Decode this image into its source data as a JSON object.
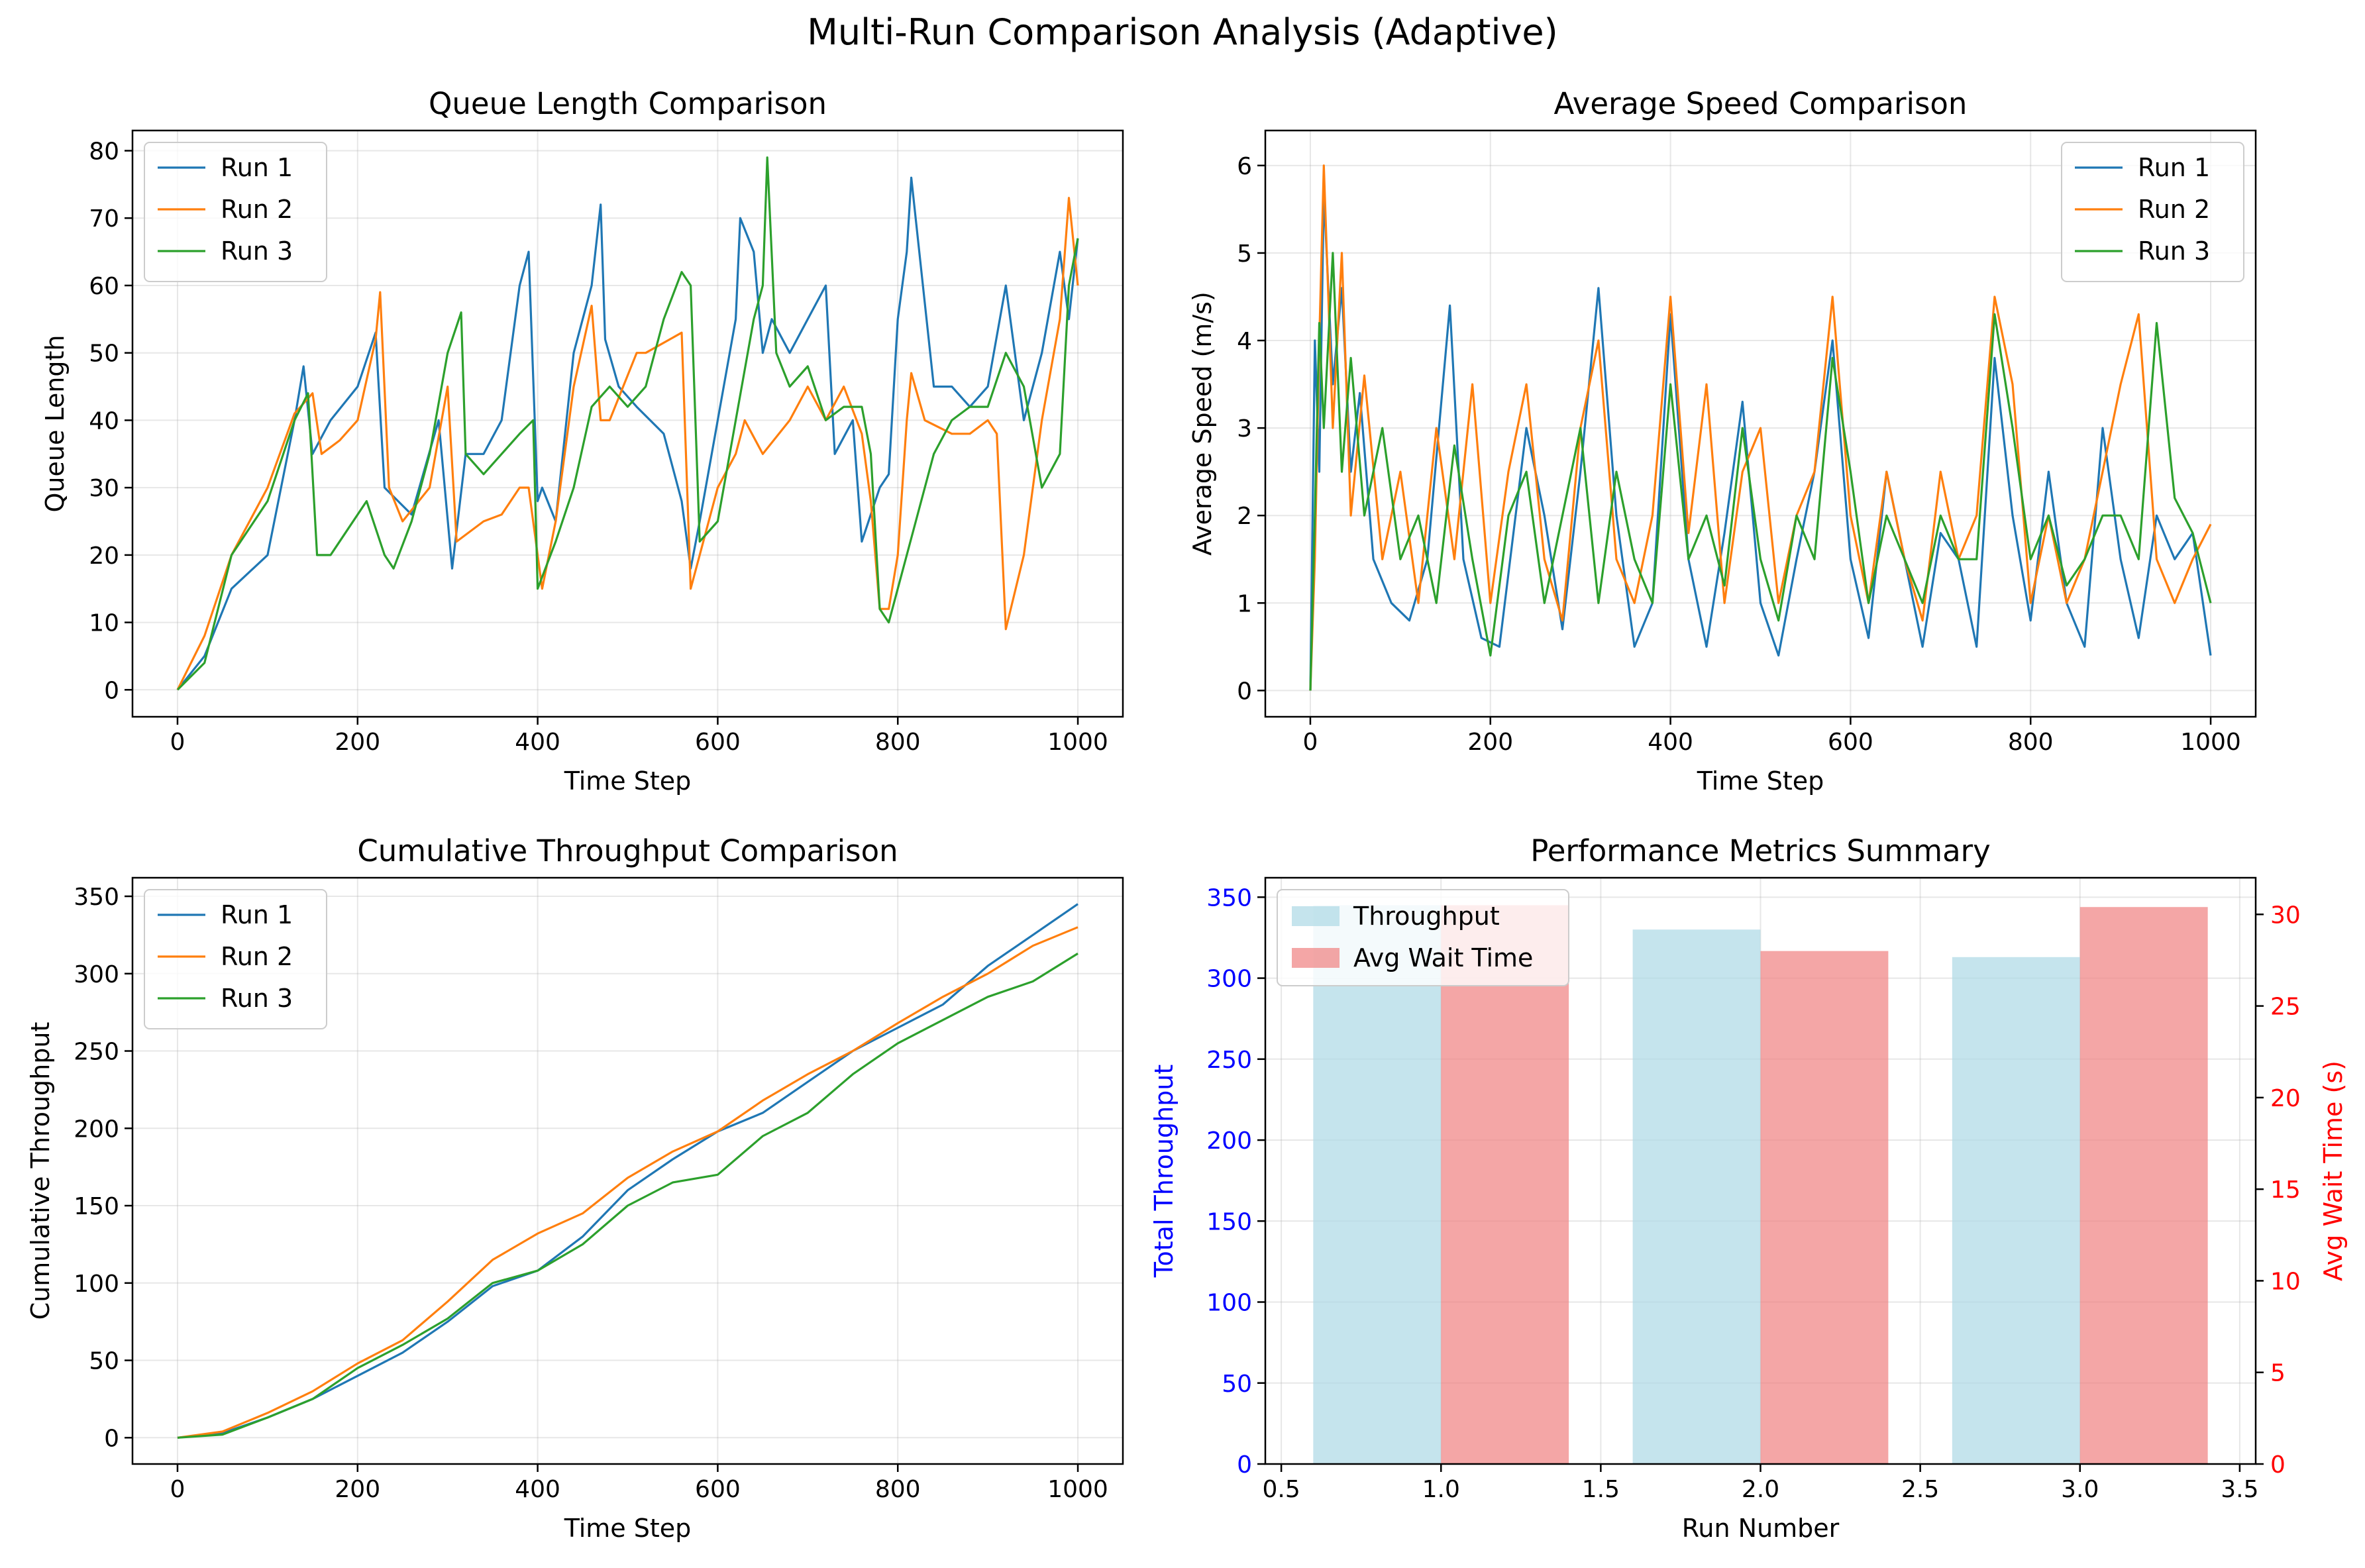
{
  "figure": {
    "suptitle": "Multi-Run Comparison Analysis (Adaptive)"
  },
  "colors": {
    "run1": "#1f77b4",
    "run2": "#ff7f0e",
    "run3": "#2ca02c",
    "throughput_bar": "#add8e6",
    "wait_bar": "#f08080",
    "left_axis_text": "#0000ff",
    "right_axis_text": "#ff0000"
  },
  "chart_data": [
    {
      "id": "queue",
      "type": "line",
      "title": "Queue Length Comparison",
      "xlabel": "Time Step",
      "ylabel": "Queue Length",
      "xlim": [
        -50,
        1050
      ],
      "ylim": [
        -4,
        83
      ],
      "xticks": [
        0,
        200,
        400,
        600,
        800,
        1000
      ],
      "yticks": [
        0,
        10,
        20,
        30,
        40,
        50,
        60,
        70,
        80
      ],
      "grid": true,
      "legend": "upper left",
      "series": [
        {
          "name": "Run 1",
          "x": [
            0,
            30,
            60,
            100,
            130,
            140,
            150,
            170,
            200,
            220,
            230,
            245,
            260,
            290,
            305,
            320,
            340,
            360,
            380,
            390,
            400,
            405,
            420,
            440,
            460,
            470,
            475,
            490,
            510,
            540,
            560,
            570,
            580,
            600,
            620,
            625,
            640,
            650,
            660,
            680,
            700,
            720,
            730,
            750,
            760,
            780,
            790,
            800,
            810,
            815,
            840,
            860,
            880,
            900,
            920,
            940,
            960,
            980,
            990,
            1000
          ],
          "y": [
            0,
            5,
            15,
            20,
            40,
            48,
            35,
            40,
            45,
            53,
            30,
            28,
            26,
            40,
            18,
            35,
            35,
            40,
            60,
            65,
            28,
            30,
            25,
            50,
            60,
            72,
            52,
            45,
            42,
            38,
            28,
            18,
            25,
            40,
            55,
            70,
            65,
            50,
            55,
            50,
            55,
            60,
            35,
            40,
            22,
            30,
            32,
            55,
            65,
            76,
            45,
            45,
            42,
            45,
            60,
            40,
            50,
            65,
            55,
            67
          ]
        },
        {
          "name": "Run 2",
          "x": [
            0,
            30,
            60,
            80,
            100,
            130,
            150,
            160,
            180,
            200,
            220,
            225,
            235,
            250,
            280,
            300,
            310,
            340,
            360,
            370,
            380,
            390,
            405,
            420,
            440,
            460,
            470,
            480,
            510,
            520,
            560,
            570,
            580,
            600,
            620,
            630,
            650,
            680,
            700,
            720,
            740,
            760,
            770,
            780,
            790,
            800,
            810,
            815,
            830,
            860,
            880,
            900,
            910,
            920,
            940,
            960,
            980,
            990,
            1000
          ],
          "y": [
            0,
            8,
            20,
            25,
            30,
            41,
            44,
            35,
            37,
            40,
            52,
            59,
            30,
            25,
            30,
            45,
            22,
            25,
            26,
            28,
            30,
            30,
            15,
            25,
            45,
            57,
            40,
            40,
            50,
            50,
            53,
            15,
            20,
            30,
            35,
            40,
            35,
            40,
            45,
            40,
            45,
            38,
            28,
            12,
            12,
            20,
            40,
            47,
            40,
            38,
            38,
            40,
            38,
            9,
            20,
            40,
            55,
            73,
            60
          ]
        },
        {
          "name": "Run 3",
          "x": [
            0,
            30,
            60,
            100,
            130,
            145,
            155,
            170,
            190,
            210,
            230,
            240,
            260,
            280,
            300,
            315,
            320,
            340,
            360,
            380,
            395,
            400,
            420,
            440,
            460,
            480,
            500,
            520,
            540,
            560,
            570,
            580,
            600,
            620,
            640,
            650,
            655,
            665,
            680,
            700,
            720,
            740,
            760,
            770,
            780,
            790,
            800,
            820,
            840,
            860,
            880,
            900,
            920,
            940,
            960,
            980,
            990,
            1000
          ],
          "y": [
            0,
            4,
            20,
            28,
            40,
            44,
            20,
            20,
            24,
            28,
            20,
            18,
            25,
            35,
            50,
            56,
            35,
            32,
            35,
            38,
            40,
            15,
            22,
            30,
            42,
            45,
            42,
            45,
            55,
            62,
            60,
            22,
            25,
            40,
            55,
            60,
            79,
            50,
            45,
            48,
            40,
            42,
            42,
            35,
            12,
            10,
            15,
            25,
            35,
            40,
            42,
            42,
            50,
            45,
            30,
            35,
            60,
            67
          ]
        }
      ]
    },
    {
      "id": "speed",
      "type": "line",
      "title": "Average Speed Comparison",
      "xlabel": "Time Step",
      "ylabel": "Average Speed (m/s)",
      "xlim": [
        -50,
        1050
      ],
      "ylim": [
        -0.3,
        6.4
      ],
      "xticks": [
        0,
        200,
        400,
        600,
        800,
        1000
      ],
      "yticks": [
        0,
        1,
        2,
        3,
        4,
        5,
        6
      ],
      "grid": true,
      "legend": "upper right",
      "series": [
        {
          "name": "Run 1",
          "x": [
            0,
            5,
            10,
            15,
            25,
            35,
            45,
            55,
            70,
            90,
            110,
            130,
            155,
            170,
            190,
            210,
            240,
            260,
            280,
            300,
            320,
            340,
            360,
            380,
            400,
            420,
            440,
            460,
            480,
            500,
            520,
            540,
            560,
            580,
            600,
            620,
            640,
            660,
            680,
            700,
            720,
            740,
            760,
            780,
            800,
            820,
            840,
            860,
            880,
            900,
            920,
            940,
            960,
            980,
            1000
          ],
          "y": [
            0,
            4.0,
            2.5,
            5.7,
            3.5,
            4.6,
            2.5,
            3.4,
            1.5,
            1.0,
            0.8,
            1.5,
            4.4,
            1.5,
            0.6,
            0.5,
            3.0,
            2.0,
            0.7,
            2.5,
            4.6,
            2.0,
            0.5,
            1.0,
            4.3,
            1.5,
            0.5,
            1.8,
            3.3,
            1.0,
            0.4,
            1.5,
            2.5,
            4.0,
            1.5,
            0.6,
            2.5,
            1.5,
            0.5,
            1.8,
            1.5,
            0.5,
            3.8,
            2.0,
            0.8,
            2.5,
            1.0,
            0.5,
            3.0,
            1.5,
            0.6,
            2.0,
            1.5,
            1.8,
            0.4
          ]
        },
        {
          "name": "Run 2",
          "x": [
            0,
            5,
            10,
            15,
            25,
            35,
            45,
            60,
            80,
            100,
            120,
            140,
            160,
            180,
            200,
            220,
            240,
            260,
            280,
            300,
            320,
            340,
            360,
            380,
            400,
            420,
            440,
            460,
            480,
            500,
            520,
            540,
            560,
            580,
            600,
            620,
            640,
            660,
            680,
            700,
            720,
            740,
            760,
            780,
            800,
            820,
            840,
            860,
            880,
            900,
            920,
            940,
            960,
            980,
            1000
          ],
          "y": [
            0,
            1.5,
            4.0,
            6.0,
            3.0,
            5.0,
            2.0,
            3.6,
            1.5,
            2.5,
            1.0,
            3.0,
            1.5,
            3.5,
            1.0,
            2.5,
            3.5,
            1.5,
            0.8,
            3.0,
            4.0,
            1.5,
            1.0,
            2.0,
            4.5,
            1.8,
            3.5,
            1.0,
            2.5,
            3.0,
            1.0,
            2.0,
            2.5,
            4.5,
            2.0,
            1.0,
            2.5,
            1.5,
            0.8,
            2.5,
            1.5,
            2.0,
            4.5,
            3.5,
            1.0,
            2.0,
            1.0,
            1.5,
            2.5,
            3.5,
            4.3,
            1.5,
            1.0,
            1.5,
            1.9
          ]
        },
        {
          "name": "Run 3",
          "x": [
            0,
            5,
            10,
            15,
            25,
            35,
            45,
            60,
            80,
            100,
            120,
            140,
            160,
            180,
            200,
            220,
            240,
            260,
            280,
            300,
            320,
            340,
            360,
            380,
            400,
            420,
            440,
            460,
            480,
            500,
            520,
            540,
            560,
            580,
            600,
            620,
            640,
            660,
            680,
            700,
            720,
            740,
            760,
            780,
            800,
            820,
            840,
            860,
            880,
            900,
            920,
            940,
            960,
            980,
            1000
          ],
          "y": [
            0,
            2.0,
            4.2,
            3.0,
            5.0,
            2.5,
            3.8,
            2.0,
            3.0,
            1.5,
            2.0,
            1.0,
            2.8,
            1.5,
            0.4,
            2.0,
            2.5,
            1.0,
            2.0,
            3.0,
            1.0,
            2.5,
            1.5,
            1.0,
            3.5,
            1.5,
            2.0,
            1.2,
            3.0,
            1.5,
            0.8,
            2.0,
            1.5,
            3.8,
            2.5,
            1.0,
            2.0,
            1.5,
            1.0,
            2.0,
            1.5,
            1.5,
            4.3,
            3.0,
            1.5,
            2.0,
            1.2,
            1.5,
            2.0,
            2.0,
            1.5,
            4.2,
            2.2,
            1.8,
            1.0
          ]
        }
      ]
    },
    {
      "id": "throughput",
      "type": "line",
      "title": "Cumulative Throughput Comparison",
      "xlabel": "Time Step",
      "ylabel": "Cumulative Throughput",
      "xlim": [
        -50,
        1050
      ],
      "ylim": [
        -17,
        362
      ],
      "xticks": [
        0,
        200,
        400,
        600,
        800,
        1000
      ],
      "yticks": [
        0,
        50,
        100,
        150,
        200,
        250,
        300,
        350
      ],
      "grid": true,
      "legend": "upper left",
      "series": [
        {
          "name": "Run 1",
          "x": [
            0,
            50,
            100,
            150,
            200,
            250,
            300,
            350,
            400,
            450,
            500,
            550,
            600,
            650,
            700,
            750,
            800,
            850,
            900,
            950,
            1000
          ],
          "y": [
            0,
            3,
            13,
            25,
            40,
            55,
            75,
            98,
            108,
            130,
            160,
            180,
            198,
            210,
            230,
            250,
            265,
            280,
            305,
            325,
            345
          ]
        },
        {
          "name": "Run 2",
          "x": [
            0,
            50,
            100,
            150,
            200,
            250,
            300,
            350,
            400,
            450,
            500,
            550,
            600,
            650,
            700,
            750,
            800,
            850,
            900,
            950,
            1000
          ],
          "y": [
            0,
            4,
            16,
            30,
            48,
            63,
            88,
            115,
            132,
            145,
            168,
            185,
            198,
            218,
            235,
            250,
            268,
            285,
            300,
            318,
            330
          ]
        },
        {
          "name": "Run 3",
          "x": [
            0,
            50,
            100,
            150,
            200,
            250,
            300,
            350,
            400,
            450,
            500,
            550,
            600,
            650,
            700,
            750,
            800,
            850,
            900,
            950,
            1000
          ],
          "y": [
            0,
            2,
            13,
            25,
            45,
            60,
            77,
            100,
            108,
            125,
            150,
            165,
            170,
            195,
            210,
            235,
            255,
            270,
            285,
            295,
            313
          ]
        }
      ]
    },
    {
      "id": "summary",
      "type": "bar",
      "title": "Performance Metrics Summary",
      "xlabel": "Run Number",
      "ylabel_left": "Total Throughput",
      "ylabel_right": "Avg Wait Time (s)",
      "xlim": [
        0.45,
        3.55
      ],
      "ylim_left": [
        0,
        362
      ],
      "ylim_right": [
        0,
        32
      ],
      "xticks": [
        "0.5",
        "1.0",
        "1.5",
        "2.0",
        "2.5",
        "3.0",
        "3.5"
      ],
      "yticks_left": [
        0,
        50,
        100,
        150,
        200,
        250,
        300,
        350
      ],
      "yticks_right": [
        0,
        5,
        10,
        15,
        20,
        25,
        30
      ],
      "grid": true,
      "legend": "upper left",
      "categories": [
        1,
        2,
        3
      ],
      "series": [
        {
          "name": "Throughput",
          "axis": "left",
          "values": [
            345,
            330,
            313
          ]
        },
        {
          "name": "Avg Wait Time",
          "axis": "right",
          "values": [
            30.5,
            28.0,
            30.4
          ]
        }
      ]
    }
  ]
}
